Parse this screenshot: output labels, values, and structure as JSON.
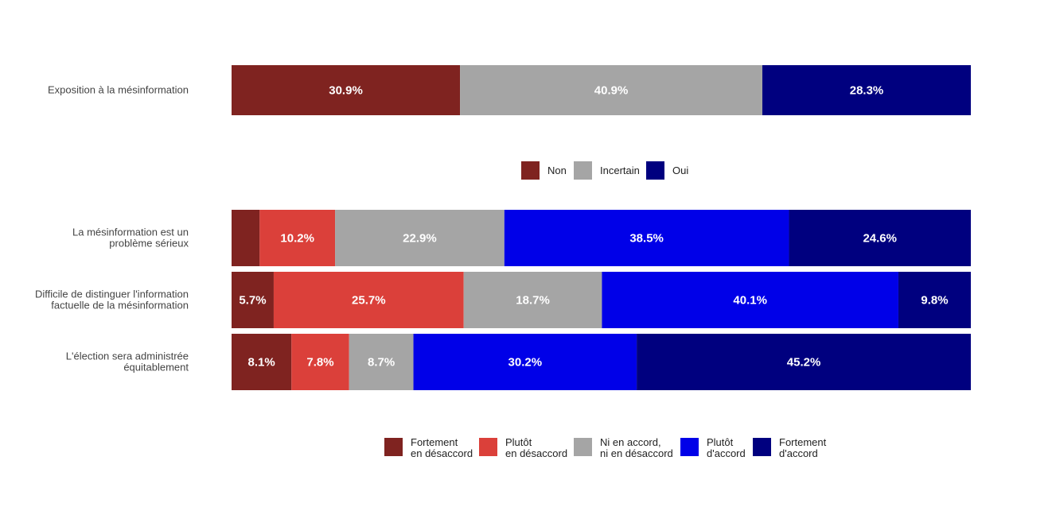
{
  "chart_data": [
    {
      "type": "bar",
      "orientation": "horizontal",
      "stacked": true,
      "categories": [
        "Exposition à la mésinformation"
      ],
      "series": [
        {
          "name": "Non",
          "color": "#7F2320",
          "values": [
            30.9
          ],
          "labels": [
            "30.9%"
          ]
        },
        {
          "name": "Incertain",
          "color": "#A5A5A5",
          "values": [
            40.9
          ],
          "labels": [
            "40.9%"
          ]
        },
        {
          "name": "Oui",
          "color": "#00007F",
          "values": [
            28.3
          ],
          "labels": [
            "28.3%"
          ]
        }
      ],
      "xlim": [
        0,
        100
      ],
      "legend": {
        "position": "bottom",
        "items": [
          "Non",
          "Incertain",
          "Oui"
        ]
      }
    },
    {
      "type": "bar",
      "orientation": "horizontal",
      "stacked": true,
      "categories": [
        "La mésinformation est un problème sérieux",
        "Difficile de distinguer l'information factuelle de la mésinformation",
        "L'élection sera administrée équitablement"
      ],
      "category_lines": [
        [
          "La mésinformation est un",
          "problème sérieux"
        ],
        [
          "Difficile de distinguer l'information",
          "factuelle de la mésinformation"
        ],
        [
          "L'élection sera administrée",
          "équitablement"
        ]
      ],
      "series": [
        {
          "name": "Fortement en désaccord",
          "legend_lines": [
            "Fortement",
            "en désaccord"
          ],
          "color": "#7F2320",
          "values": [
            3.8,
            5.7,
            8.1
          ],
          "labels": [
            "",
            "5.7%",
            "8.1%"
          ]
        },
        {
          "name": "Plutôt en désaccord",
          "legend_lines": [
            "Plutôt",
            "en désaccord"
          ],
          "color": "#DB403A",
          "values": [
            10.2,
            25.7,
            7.8
          ],
          "labels": [
            "10.2%",
            "25.7%",
            "7.8%"
          ]
        },
        {
          "name": "Ni en accord, ni en désaccord",
          "legend_lines": [
            "Ni en accord,",
            "ni en désaccord"
          ],
          "color": "#A5A5A5",
          "values": [
            22.9,
            18.7,
            8.7
          ],
          "labels": [
            "22.9%",
            "18.7%",
            "8.7%"
          ]
        },
        {
          "name": "Plutôt d'accord",
          "legend_lines": [
            "Plutôt",
            "d'accord"
          ],
          "color": "#0000E8",
          "values": [
            38.5,
            40.1,
            30.2
          ],
          "labels": [
            "38.5%",
            "40.1%",
            "30.2%"
          ]
        },
        {
          "name": "Fortement d'accord",
          "legend_lines": [
            "Fortement",
            "d'accord"
          ],
          "color": "#00007F",
          "values": [
            24.6,
            9.8,
            45.2
          ],
          "labels": [
            "24.6%",
            "9.8%",
            "45.2%"
          ]
        }
      ],
      "xlim": [
        0,
        100
      ],
      "legend": {
        "position": "bottom"
      }
    }
  ]
}
